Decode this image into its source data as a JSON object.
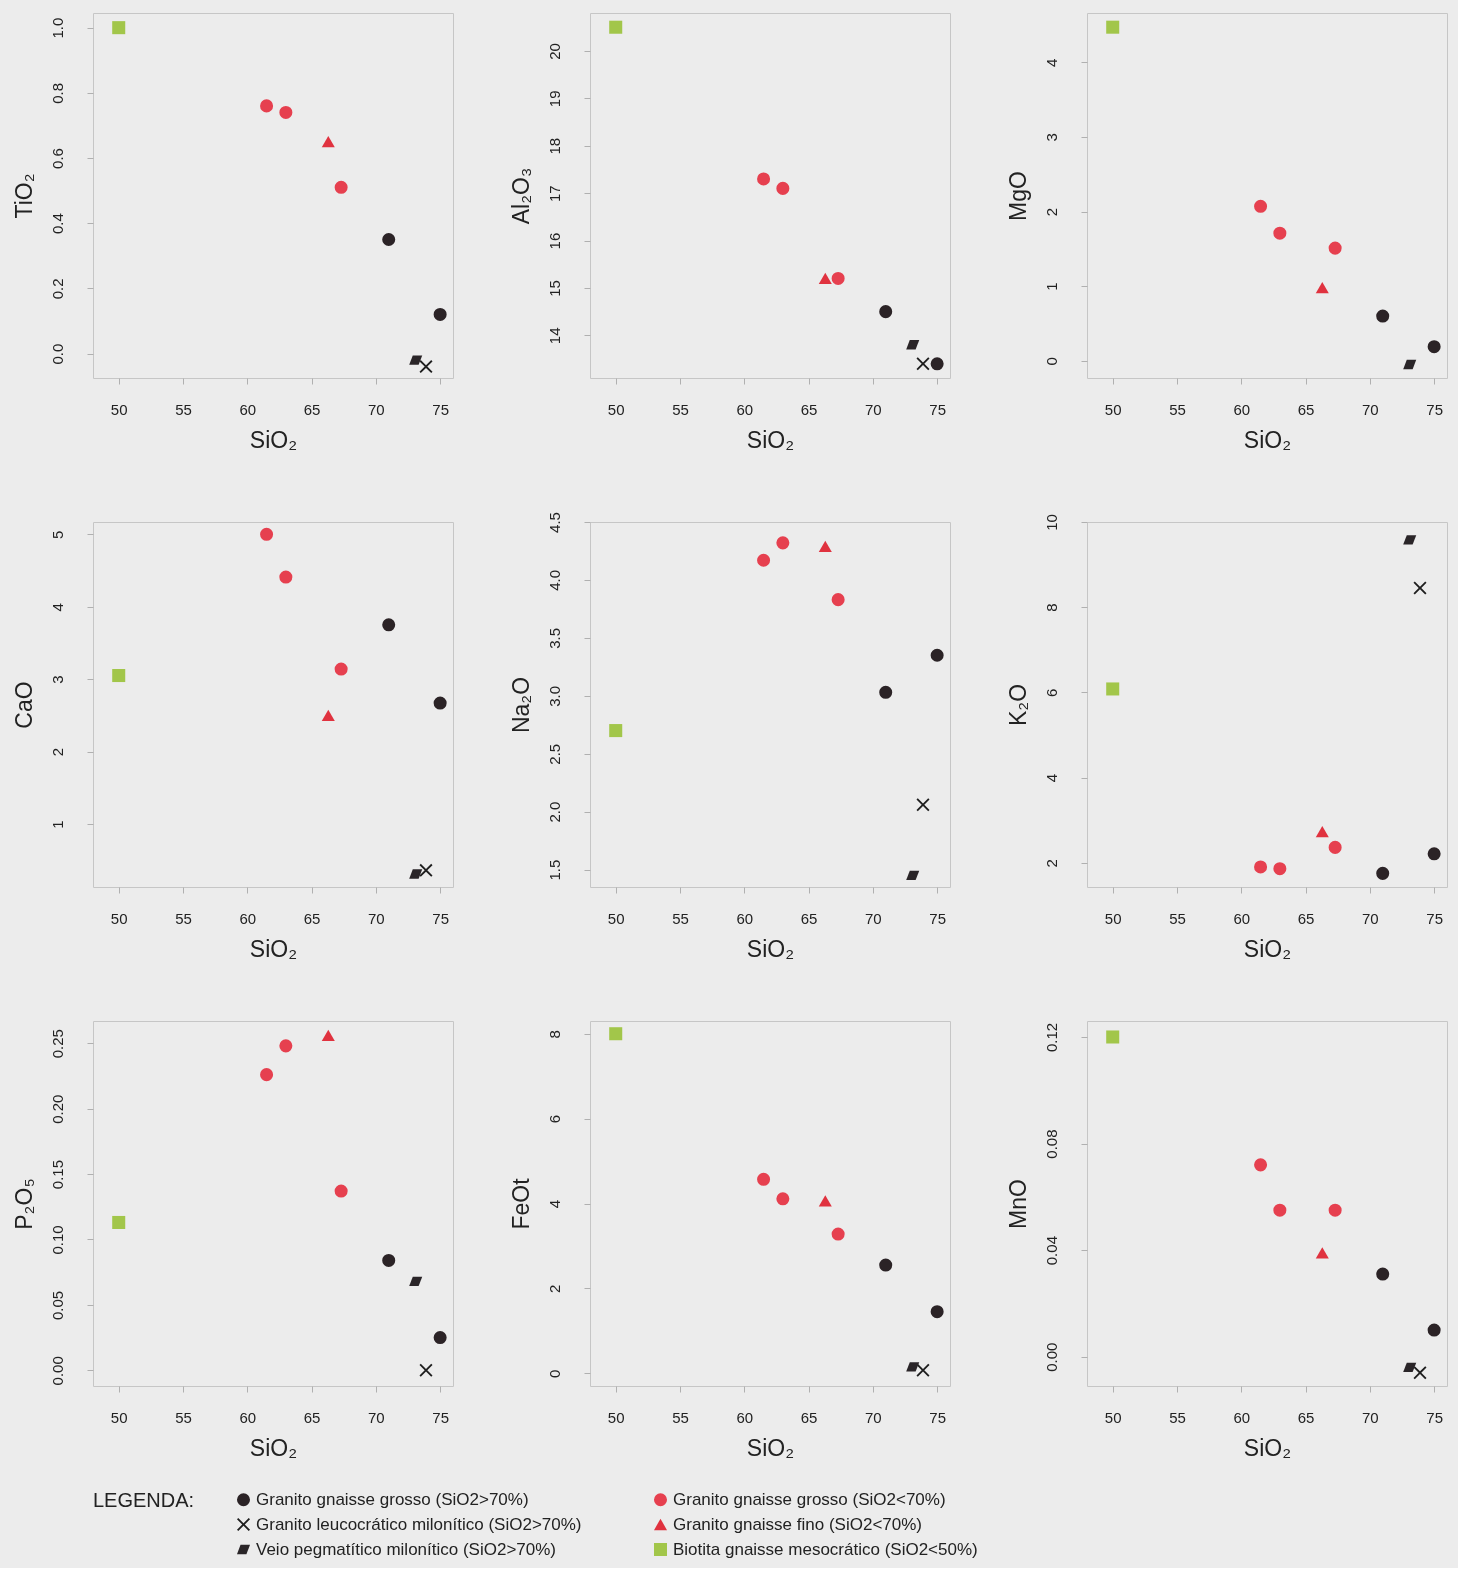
{
  "chart_data": [
    {
      "type": "scatter",
      "xlabel": "SiO₂",
      "ylabel": "TiO₂",
      "xlim": [
        48,
        76
      ],
      "xticks": [
        50,
        55,
        60,
        65,
        70,
        75
      ],
      "ylim": [
        -0.075,
        1.045
      ],
      "yticks": [
        {
          "value": 0,
          "label": "0.0"
        },
        0.2,
        0.4,
        0.6,
        0.8,
        {
          "value": 1,
          "label": "1.0"
        }
      ],
      "legend": "bottom",
      "legend_title": "LEGENDA:",
      "series": [
        {
          "name": "Granito gnaisse grosso (SiO2>70%)",
          "color": "#2b2326",
          "marker": "circle",
          "x": [
            71.0,
            75.0
          ],
          "values": [
            0.35,
            0.12
          ]
        },
        {
          "name": "Granito gnaisse grosso (SiO2<70%)",
          "color": "#e6404f",
          "marker": "circle",
          "x": [
            61.5,
            63.0,
            67.3
          ],
          "values": [
            0.76,
            0.74,
            0.51
          ]
        },
        {
          "name": "Granito leucocrático milonítico (SiO2>70%)",
          "color": "#1e1e1e",
          "marker": "cross",
          "x": [
            73.9
          ],
          "values": [
            -0.04
          ]
        },
        {
          "name": "Granito gnaisse fino (SiO2<70%)",
          "color": "#e0323f",
          "marker": "triangle",
          "x": [
            66.3
          ],
          "values": [
            0.65
          ]
        },
        {
          "name": "Veio pegmatítico milonítico (SiO2>70%)",
          "color": "#2a2528",
          "marker": "diamond",
          "x": [
            73.1
          ],
          "values": [
            -0.02
          ]
        },
        {
          "name": "Biotita gnaisse mesocrático (SiO2<50%)",
          "color": "#a2c64a",
          "marker": "square",
          "x": [
            50.0
          ],
          "values": [
            1.0
          ]
        }
      ]
    },
    {
      "type": "scatter",
      "xlabel": "SiO₂",
      "ylabel": "Al₂O₃",
      "xlim": [
        48,
        76
      ],
      "xticks": [
        50,
        55,
        60,
        65,
        70,
        75
      ],
      "ylim": [
        13.1,
        20.8
      ],
      "yticks": [
        14,
        15,
        16,
        17,
        18,
        19,
        20
      ],
      "series": [
        {
          "name": "Granito gnaisse grosso (SiO2>70%)",
          "color": "#2b2326",
          "marker": "circle",
          "x": [
            71.0,
            75.0
          ],
          "values": [
            14.5,
            13.4
          ]
        },
        {
          "name": "Granito gnaisse grosso (SiO2<70%)",
          "color": "#e6404f",
          "marker": "circle",
          "x": [
            61.5,
            63.0,
            67.3
          ],
          "values": [
            17.3,
            17.1,
            15.2
          ]
        },
        {
          "name": "Granito leucocrático milonítico (SiO2>70%)",
          "color": "#1e1e1e",
          "marker": "cross",
          "x": [
            73.9
          ],
          "values": [
            13.4
          ]
        },
        {
          "name": "Granito gnaisse fino (SiO2<70%)",
          "color": "#e0323f",
          "marker": "triangle",
          "x": [
            66.3
          ],
          "values": [
            15.2
          ]
        },
        {
          "name": "Veio pegmatítico milonítico (SiO2>70%)",
          "color": "#2a2528",
          "marker": "diamond",
          "x": [
            73.1
          ],
          "values": [
            13.8
          ]
        },
        {
          "name": "Biotita gnaisse mesocrático (SiO2<50%)",
          "color": "#a2c64a",
          "marker": "square",
          "x": [
            50.0
          ],
          "values": [
            20.5
          ]
        }
      ]
    },
    {
      "type": "scatter",
      "xlabel": "SiO₂",
      "ylabel": "MgO",
      "xlim": [
        48,
        76
      ],
      "xticks": [
        50,
        55,
        60,
        65,
        70,
        75
      ],
      "ylim": [
        -0.23,
        4.66
      ],
      "yticks": [
        0,
        1,
        2,
        3,
        4
      ],
      "series": [
        {
          "name": "Granito gnaisse grosso (SiO2>70%)",
          "color": "#2b2326",
          "marker": "circle",
          "x": [
            71.0,
            75.0
          ],
          "values": [
            0.6,
            0.19
          ]
        },
        {
          "name": "Granito gnaisse grosso (SiO2<70%)",
          "color": "#e6404f",
          "marker": "circle",
          "x": [
            61.5,
            63.0,
            67.3
          ],
          "values": [
            2.07,
            1.71,
            1.51
          ]
        },
        {
          "name": "Granito leucocrático milonítico (SiO2>70%)",
          "color": "#1e1e1e",
          "marker": "cross"
        },
        {
          "name": "Granito gnaisse fino (SiO2<70%)",
          "color": "#e0323f",
          "marker": "triangle",
          "x": [
            66.3
          ],
          "values": [
            0.98
          ]
        },
        {
          "name": "Veio pegmatítico milonítico (SiO2>70%)",
          "color": "#2a2528",
          "marker": "diamond",
          "x": [
            73.1
          ],
          "values": [
            -0.05
          ]
        },
        {
          "name": "Biotita gnaisse mesocrático (SiO2<50%)",
          "color": "#a2c64a",
          "marker": "square",
          "x": [
            50.0
          ],
          "values": [
            4.47
          ]
        }
      ]
    },
    {
      "type": "scatter",
      "xlabel": "SiO₂",
      "ylabel": "CaO",
      "xlim": [
        48,
        76
      ],
      "xticks": [
        50,
        55,
        60,
        65,
        70,
        75
      ],
      "ylim": [
        0.13,
        5.17
      ],
      "yticks": [
        1,
        2,
        3,
        4,
        5
      ],
      "series": [
        {
          "name": "Granito gnaisse grosso (SiO2>70%)",
          "color": "#2b2326",
          "marker": "circle",
          "x": [
            71.0,
            75.0
          ],
          "values": [
            3.75,
            2.67
          ]
        },
        {
          "name": "Granito gnaisse grosso (SiO2<70%)",
          "color": "#e6404f",
          "marker": "circle",
          "x": [
            61.5,
            63.0,
            67.3
          ],
          "values": [
            5.0,
            4.41,
            3.14
          ]
        },
        {
          "name": "Granito leucocrático milonítico (SiO2>70%)",
          "color": "#1e1e1e",
          "marker": "cross",
          "x": [
            73.9
          ],
          "values": [
            0.36
          ]
        },
        {
          "name": "Granito gnaisse fino (SiO2<70%)",
          "color": "#e0323f",
          "marker": "triangle",
          "x": [
            66.3
          ],
          "values": [
            2.5
          ]
        },
        {
          "name": "Veio pegmatítico milonítico (SiO2>70%)",
          "color": "#2a2528",
          "marker": "diamond",
          "x": [
            73.1
          ],
          "values": [
            0.31
          ]
        },
        {
          "name": "Biotita gnaisse mesocrático (SiO2<50%)",
          "color": "#a2c64a",
          "marker": "square",
          "x": [
            50.0
          ],
          "values": [
            3.05
          ]
        }
      ]
    },
    {
      "type": "scatter",
      "xlabel": "SiO₂",
      "ylabel": "Na₂O",
      "xlim": [
        48,
        76
      ],
      "xticks": [
        50,
        55,
        60,
        65,
        70,
        75
      ],
      "ylim": [
        1.35,
        4.5
      ],
      "yticks": [
        1.5,
        {
          "value": 2,
          "label": "2.0"
        },
        2.5,
        {
          "value": 3,
          "label": "3.0"
        },
        3.5,
        {
          "value": 4,
          "label": "4.0"
        },
        4.5
      ],
      "series": [
        {
          "name": "Granito gnaisse grosso (SiO2>70%)",
          "color": "#2b2326",
          "marker": "circle",
          "x": [
            71.0,
            75.0
          ],
          "values": [
            3.03,
            3.35
          ]
        },
        {
          "name": "Granito gnaisse grosso (SiO2<70%)",
          "color": "#e6404f",
          "marker": "circle",
          "x": [
            61.5,
            63.0,
            67.3
          ],
          "values": [
            4.17,
            4.32,
            3.83
          ]
        },
        {
          "name": "Granito leucocrático milonítico (SiO2>70%)",
          "color": "#1e1e1e",
          "marker": "cross",
          "x": [
            73.9
          ],
          "values": [
            2.06
          ]
        },
        {
          "name": "Granito gnaisse fino (SiO2<70%)",
          "color": "#e0323f",
          "marker": "triangle",
          "x": [
            66.3
          ],
          "values": [
            4.29
          ]
        },
        {
          "name": "Veio pegmatítico milonítico (SiO2>70%)",
          "color": "#2a2528",
          "marker": "diamond",
          "x": [
            73.1
          ],
          "values": [
            1.45
          ]
        },
        {
          "name": "Biotita gnaisse mesocrático (SiO2<50%)",
          "color": "#a2c64a",
          "marker": "square",
          "x": [
            50.0
          ],
          "values": [
            2.7
          ]
        }
      ]
    },
    {
      "type": "scatter",
      "xlabel": "SiO₂",
      "ylabel": "K₂O",
      "xlim": [
        48,
        76
      ],
      "xticks": [
        50,
        55,
        60,
        65,
        70,
        75
      ],
      "ylim": [
        1.43,
        10.0
      ],
      "yticks": [
        2,
        4,
        6,
        8,
        10
      ],
      "series": [
        {
          "name": "Granito gnaisse grosso (SiO2>70%)",
          "color": "#2b2326",
          "marker": "circle",
          "x": [
            71.0,
            75.0
          ],
          "values": [
            1.75,
            2.21
          ]
        },
        {
          "name": "Granito gnaisse grosso (SiO2<70%)",
          "color": "#e6404f",
          "marker": "circle",
          "x": [
            61.5,
            63.0,
            67.3
          ],
          "values": [
            1.9,
            1.86,
            2.36
          ]
        },
        {
          "name": "Granito leucocrático milonítico (SiO2>70%)",
          "color": "#1e1e1e",
          "marker": "cross",
          "x": [
            73.9
          ],
          "values": [
            8.45
          ]
        },
        {
          "name": "Granito gnaisse fino (SiO2<70%)",
          "color": "#e0323f",
          "marker": "triangle",
          "x": [
            66.3
          ],
          "values": [
            2.73
          ]
        },
        {
          "name": "Veio pegmatítico milonítico (SiO2>70%)",
          "color": "#2a2528",
          "marker": "diamond",
          "x": [
            73.1
          ],
          "values": [
            9.58
          ]
        },
        {
          "name": "Biotita gnaisse mesocrático (SiO2<50%)",
          "color": "#a2c64a",
          "marker": "square",
          "x": [
            50.0
          ],
          "values": [
            6.08
          ]
        }
      ]
    },
    {
      "type": "scatter",
      "xlabel": "SiO₂",
      "ylabel": "P₂O₅",
      "xlim": [
        48,
        76
      ],
      "xticks": [
        50,
        55,
        60,
        65,
        70,
        75
      ],
      "ylim": [
        -0.012,
        0.267
      ],
      "yticks": [
        {
          "value": 0,
          "label": "0.00"
        },
        0.05,
        {
          "value": 0.1,
          "label": "0.10"
        },
        0.15,
        {
          "value": 0.2,
          "label": "0.20"
        },
        0.25
      ],
      "series": [
        {
          "name": "Granito gnaisse grosso (SiO2>70%)",
          "color": "#2b2326",
          "marker": "circle",
          "x": [
            71.0,
            75.0
          ],
          "values": [
            0.084,
            0.025
          ]
        },
        {
          "name": "Granito gnaisse grosso (SiO2<70%)",
          "color": "#e6404f",
          "marker": "circle",
          "x": [
            61.5,
            63.0,
            67.3
          ],
          "values": [
            0.226,
            0.248,
            0.137
          ]
        },
        {
          "name": "Granito leucocrático milonítico (SiO2>70%)",
          "color": "#1e1e1e",
          "marker": "cross",
          "x": [
            73.9
          ],
          "values": [
            0.0
          ]
        },
        {
          "name": "Granito gnaisse fino (SiO2<70%)",
          "color": "#e0323f",
          "marker": "triangle",
          "x": [
            66.3
          ],
          "values": [
            0.256
          ]
        },
        {
          "name": "Veio pegmatítico milonítico (SiO2>70%)",
          "color": "#2a2528",
          "marker": "diamond",
          "x": [
            73.1
          ],
          "values": [
            0.068
          ]
        },
        {
          "name": "Biotita gnaisse mesocrático (SiO2<50%)",
          "color": "#a2c64a",
          "marker": "square",
          "x": [
            50.0
          ],
          "values": [
            0.113
          ]
        }
      ]
    },
    {
      "type": "scatter",
      "xlabel": "SiO₂",
      "ylabel": "FeOt",
      "xlim": [
        48,
        76
      ],
      "xticks": [
        50,
        55,
        60,
        65,
        70,
        75
      ],
      "ylim": [
        -0.3,
        8.3
      ],
      "yticks": [
        0,
        2,
        4,
        6,
        8
      ],
      "series": [
        {
          "name": "Granito gnaisse grosso (SiO2>70%)",
          "color": "#2b2326",
          "marker": "circle",
          "x": [
            71.0,
            75.0
          ],
          "values": [
            2.55,
            1.45
          ]
        },
        {
          "name": "Granito gnaisse grosso (SiO2<70%)",
          "color": "#e6404f",
          "marker": "circle",
          "x": [
            61.5,
            63.0,
            67.3
          ],
          "values": [
            4.57,
            4.11,
            3.28
          ]
        },
        {
          "name": "Granito leucocrático milonítico (SiO2>70%)",
          "color": "#1e1e1e",
          "marker": "cross",
          "x": [
            73.9
          ],
          "values": [
            0.07
          ]
        },
        {
          "name": "Granito gnaisse fino (SiO2<70%)",
          "color": "#e0323f",
          "marker": "triangle",
          "x": [
            66.3
          ],
          "values": [
            4.06
          ]
        },
        {
          "name": "Veio pegmatítico milonítico (SiO2>70%)",
          "color": "#2a2528",
          "marker": "diamond",
          "x": [
            73.1
          ],
          "values": [
            0.15
          ]
        },
        {
          "name": "Biotita gnaisse mesocrático (SiO2<50%)",
          "color": "#a2c64a",
          "marker": "square",
          "x": [
            50.0
          ],
          "values": [
            8.0
          ]
        }
      ]
    },
    {
      "type": "scatter",
      "xlabel": "SiO₂",
      "ylabel": "MnO",
      "xlim": [
        48,
        76
      ],
      "xticks": [
        50,
        55,
        60,
        65,
        70,
        75
      ],
      "ylim": [
        -0.011,
        0.126
      ],
      "yticks": [
        {
          "value": 0,
          "label": "0.00"
        },
        0.04,
        0.08,
        0.12
      ],
      "series": [
        {
          "name": "Granito gnaisse grosso (SiO2>70%)",
          "color": "#2b2326",
          "marker": "circle",
          "x": [
            71.0,
            75.0
          ],
          "values": [
            0.031,
            0.01
          ]
        },
        {
          "name": "Granito gnaisse grosso (SiO2<70%)",
          "color": "#e6404f",
          "marker": "circle",
          "x": [
            61.5,
            63.0,
            67.3
          ],
          "values": [
            0.072,
            0.055,
            0.055
          ]
        },
        {
          "name": "Granito leucocrático milonítico (SiO2>70%)",
          "color": "#1e1e1e",
          "marker": "cross",
          "x": [
            73.9
          ],
          "values": [
            -0.006
          ]
        },
        {
          "name": "Granito gnaisse fino (SiO2<70%)",
          "color": "#e0323f",
          "marker": "triangle",
          "x": [
            66.3
          ],
          "values": [
            0.039
          ]
        },
        {
          "name": "Veio pegmatítico milonítico (SiO2>70%)",
          "color": "#2a2528",
          "marker": "diamond",
          "x": [
            73.1
          ],
          "values": [
            -0.004
          ]
        },
        {
          "name": "Biotita gnaisse mesocrático (SiO2<50%)",
          "color": "#a2c64a",
          "marker": "square",
          "x": [
            50.0
          ],
          "values": [
            0.12
          ]
        }
      ]
    }
  ]
}
